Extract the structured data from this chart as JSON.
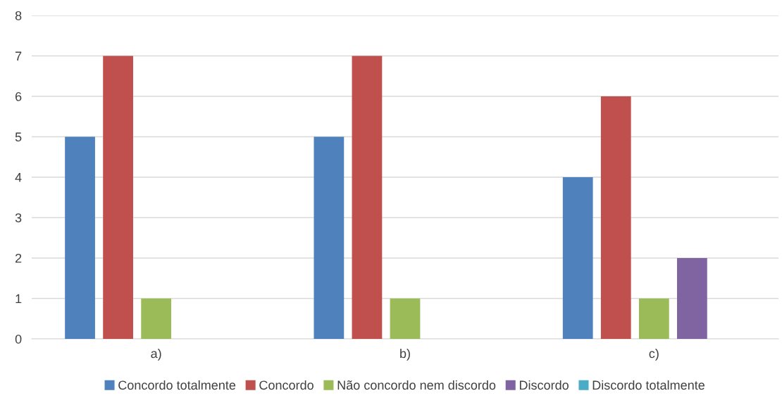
{
  "chart_data": {
    "type": "bar",
    "categories": [
      "a)",
      "b)",
      "c)"
    ],
    "series": [
      {
        "name": "Concordo totalmente",
        "color": "#4f81bd",
        "values": [
          5,
          5,
          4
        ]
      },
      {
        "name": "Concordo",
        "color": "#c0504d",
        "values": [
          7,
          7,
          6
        ]
      },
      {
        "name": "Não concordo nem discordo",
        "color": "#9bbb59",
        "values": [
          1,
          1,
          1
        ]
      },
      {
        "name": "Discordo",
        "color": "#8064a2",
        "values": [
          0,
          0,
          2
        ]
      },
      {
        "name": "Discordo totalmente",
        "color": "#4bacc6",
        "values": [
          0,
          0,
          0
        ]
      }
    ],
    "ylim": [
      0,
      8
    ],
    "yticks": [
      0,
      1,
      2,
      3,
      4,
      5,
      6,
      7,
      8
    ],
    "grid": "y",
    "legend": "bottom"
  }
}
